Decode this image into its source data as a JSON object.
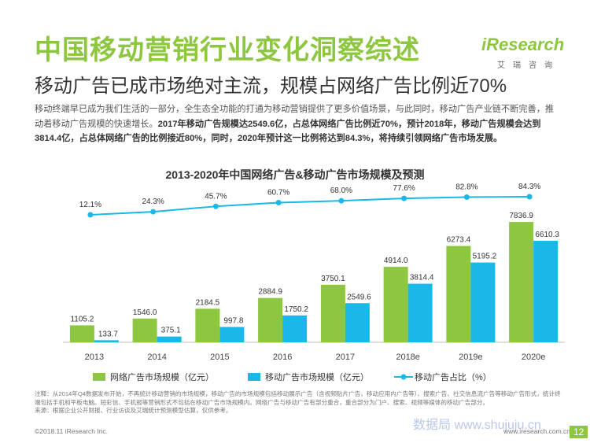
{
  "header": {
    "title": "中国移动营销行业变化洞察综述",
    "subtitle": "移动广告已成市场绝对主流，规模占网络广告比例近70%",
    "logo_text": "iResearch",
    "logo_sub": "艾瑞咨询"
  },
  "intro": {
    "part1": "移动终端早已成为我们生活的一部分，全生态全功能的打通为移动营销提供了更多价值场景，与此同时，移动广告产业链不断完善，推动着移动广告规模的快速增长。",
    "part2": "2017年移动广告规模达2549.6亿，占总体网络广告比例近70%，预计2018年，移动广告规模会达到3814.4亿，占总体网络广告的比例接近80%，同时，2020年预计这一比例将达到84.3%，将持续引领网络广告市场发展。"
  },
  "chart_data": {
    "type": "bar",
    "title": "2013-2020年中国网络广告&移动广告市场规模及预测",
    "categories": [
      "2013",
      "2014",
      "2015",
      "2016",
      "2017",
      "2018e",
      "2019e",
      "2020e"
    ],
    "series": [
      {
        "name": "网络广告市场规模（亿元）",
        "type": "bar",
        "color": "#8dc63f",
        "values": [
          1105.2,
          1546.0,
          2184.5,
          2884.9,
          3750.1,
          4914.0,
          6273.4,
          7836.9
        ],
        "labels": [
          "1105.2",
          "1546.0",
          "2184.5",
          "2884.9",
          "3750.1",
          "4914.0",
          "6273.4",
          "7836.9"
        ]
      },
      {
        "name": "移动广告市场规模（亿元）",
        "type": "bar",
        "color": "#1ab8e8",
        "values": [
          133.7,
          375.1,
          997.8,
          1750.2,
          2549.6,
          3814.4,
          5195.2,
          6610.3
        ],
        "labels": [
          "133.7",
          "375.1",
          "997.8",
          "1750.2",
          "2549.6",
          "3814.4",
          "5195.2",
          "6610.3"
        ]
      },
      {
        "name": "移动广告占比（%）",
        "type": "line",
        "color": "#1ab8e8",
        "values": [
          12.1,
          24.3,
          45.7,
          60.7,
          68.0,
          77.6,
          82.8,
          84.3
        ],
        "labels": [
          "12.1%",
          "24.3%",
          "45.7%",
          "60.7%",
          "68.0%",
          "77.6%",
          "82.8%",
          "84.3%"
        ]
      }
    ],
    "legend_position": "bottom"
  },
  "notes": {
    "note": "注释：从2014年Q4数据发布开始，不再统计移动营销的市场规模，移动广告的市场规模包括移动展示广告（含视频贴片广告，移动应用内广告等）、搜索广告、社交信息流广告等移动广告形式，统计终端包括手机和平板电脑。短彩信、手机报等营销形式不包括在移动广告市场规模内。网络广告与移动广告有部分重合，重合部分为门户、搜索、视频等媒体的移动广告部分。",
    "source": "来源：根据企业公开财报、行业访谈及艾瑞统计预测模型估算，仅供参考。"
  },
  "footer": {
    "copyright": "©2018.11 iResearch Inc.",
    "url": "www.iresearch.com.cn",
    "page": "12",
    "watermark": "数据局 www.shujuju.cn"
  }
}
